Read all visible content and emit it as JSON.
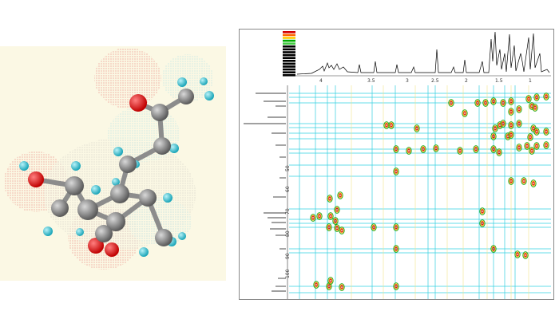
{
  "molecule": {
    "atom_colors": {
      "carbon": "#7f7f7f",
      "oxygen": "#e01010",
      "hydrogen": "#39c2d2"
    },
    "background": "#fbf8e4"
  },
  "spectrum": {
    "contour_colors": [
      "#d20000",
      "#ff6600",
      "#ffcc00",
      "#00aa00",
      "#44cc44",
      "#000000"
    ],
    "x_ticks": [
      "4",
      "3.5",
      "3",
      "2.5",
      "2",
      "1.5",
      "1"
    ],
    "y_ticks": [
      "50",
      "60",
      "70",
      "80",
      "90",
      "100"
    ],
    "grid_color": "#33d0e0"
  }
}
